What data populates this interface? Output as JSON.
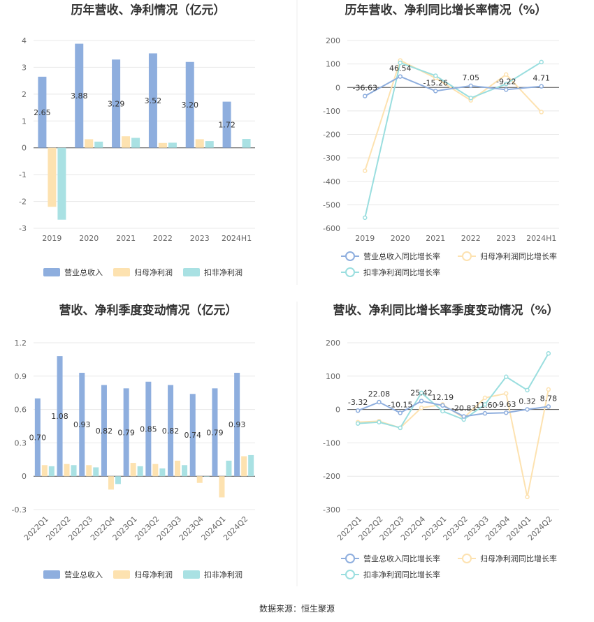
{
  "colors": {
    "revenue": "#8eaede",
    "net_profit": "#fde2b0",
    "deducted_profit": "#a9e1e3",
    "revenue_line": "#8eaede",
    "net_line": "#fde2b0",
    "deducted_line": "#9adedf",
    "grid": "#e8e8e8",
    "axis": "#555555"
  },
  "source": "数据来源：恒生聚源",
  "chart_data": [
    {
      "type": "bar",
      "title": "历年营收、净利情况（亿元）",
      "categories": [
        "2019",
        "2020",
        "2021",
        "2022",
        "2023",
        "2024H1"
      ],
      "ylim": [
        -3,
        4
      ],
      "yticks": [
        "-3",
        "-2",
        "-1",
        "0",
        "1",
        "2",
        "3",
        "4"
      ],
      "series": [
        {
          "name": "营业总收入",
          "values": [
            2.65,
            3.88,
            3.29,
            3.52,
            3.2,
            1.72
          ],
          "labels": [
            "2.65",
            "3.88",
            "3.29",
            "3.52",
            "3.20",
            "1.72"
          ]
        },
        {
          "name": "归母净利润",
          "values": [
            -2.2,
            0.32,
            0.43,
            0.18,
            0.32,
            null
          ]
        },
        {
          "name": "扣非净利润",
          "values": [
            -2.68,
            0.23,
            0.37,
            0.19,
            0.25,
            0.33
          ]
        }
      ],
      "legend": "bottom"
    },
    {
      "type": "line",
      "title": "历年营收、净利同比增长率情况（%）",
      "categories": [
        "2019",
        "2020",
        "2021",
        "2022",
        "2023",
        "2024H1"
      ],
      "ylim": [
        -600,
        200
      ],
      "yticks": [
        "-600",
        "-500",
        "-400",
        "-300",
        "-200",
        "-100",
        "0",
        "100",
        "200"
      ],
      "series": [
        {
          "name": "营业总收入同比增长率",
          "values": [
            -36.63,
            46.54,
            -15.26,
            7.05,
            -9.22,
            4.71
          ],
          "labels": [
            "-36.63",
            "46.54",
            "-15.26",
            "7.05",
            "-9.22",
            "4.71"
          ]
        },
        {
          "name": "归母净利润同比增长率",
          "values": [
            -355,
            115,
            40,
            -55,
            55,
            -105
          ]
        },
        {
          "name": "扣非净利润同比增长率",
          "values": [
            -555,
            105,
            50,
            -45,
            15,
            108
          ]
        }
      ],
      "legend": "bottom"
    },
    {
      "type": "bar",
      "title": "营收、净利季度变动情况（亿元）",
      "categories": [
        "2022Q1",
        "2022Q2",
        "2022Q3",
        "2022Q4",
        "2023Q1",
        "2023Q2",
        "2023Q3",
        "2023Q4",
        "2024Q1",
        "2024Q2"
      ],
      "ylim": [
        -0.3,
        1.2
      ],
      "yticks": [
        "-0.3",
        "0",
        "0.3",
        "0.6",
        "0.9",
        "1.2"
      ],
      "series": [
        {
          "name": "营业总收入",
          "values": [
            0.7,
            1.08,
            0.93,
            0.82,
            0.79,
            0.85,
            0.82,
            0.74,
            0.79,
            0.93
          ],
          "labels": [
            "0.70",
            "1.08",
            "0.93",
            "0.82",
            "0.79",
            "0.85",
            "0.82",
            "0.74",
            "0.79",
            "0.93"
          ]
        },
        {
          "name": "归母净利润",
          "values": [
            0.1,
            0.11,
            0.1,
            -0.12,
            0.12,
            0.11,
            0.14,
            -0.06,
            -0.19,
            0.18
          ]
        },
        {
          "name": "扣非净利润",
          "values": [
            0.09,
            0.1,
            0.08,
            -0.07,
            0.09,
            0.07,
            0.1,
            0.0,
            0.14,
            0.19
          ]
        }
      ],
      "legend": "bottom"
    },
    {
      "type": "line",
      "title": "营收、净利同比增长率季度变动情况（%）",
      "categories": [
        "2022Q1",
        "2022Q2",
        "2022Q3",
        "2022Q4",
        "2023Q1",
        "2023Q2",
        "2023Q3",
        "2023Q4",
        "2024Q1",
        "2024Q2"
      ],
      "ylim": [
        -300,
        200
      ],
      "yticks": [
        "-300",
        "-200",
        "-100",
        "0",
        "100",
        "200"
      ],
      "series": [
        {
          "name": "营业总收入同比增长率",
          "values": [
            -3.32,
            22.08,
            -10.15,
            25.42,
            12.19,
            -20.83,
            -11.6,
            -9.63,
            0.32,
            8.78
          ],
          "labels": [
            "-3.32",
            "22.08",
            "-10.15",
            "25.42",
            "12.19",
            "-20.83",
            "-11.60",
            "-9.63",
            "0.32",
            "8.78"
          ]
        },
        {
          "name": "归母净利润同比增长率",
          "values": [
            -38,
            -35,
            -55,
            5,
            15,
            -25,
            35,
            48,
            -262,
            60
          ]
        },
        {
          "name": "扣非净利润同比增长率",
          "values": [
            -42,
            -38,
            -55,
            50,
            -5,
            -30,
            15,
            98,
            58,
            168
          ]
        }
      ],
      "legend": "bottom"
    }
  ]
}
